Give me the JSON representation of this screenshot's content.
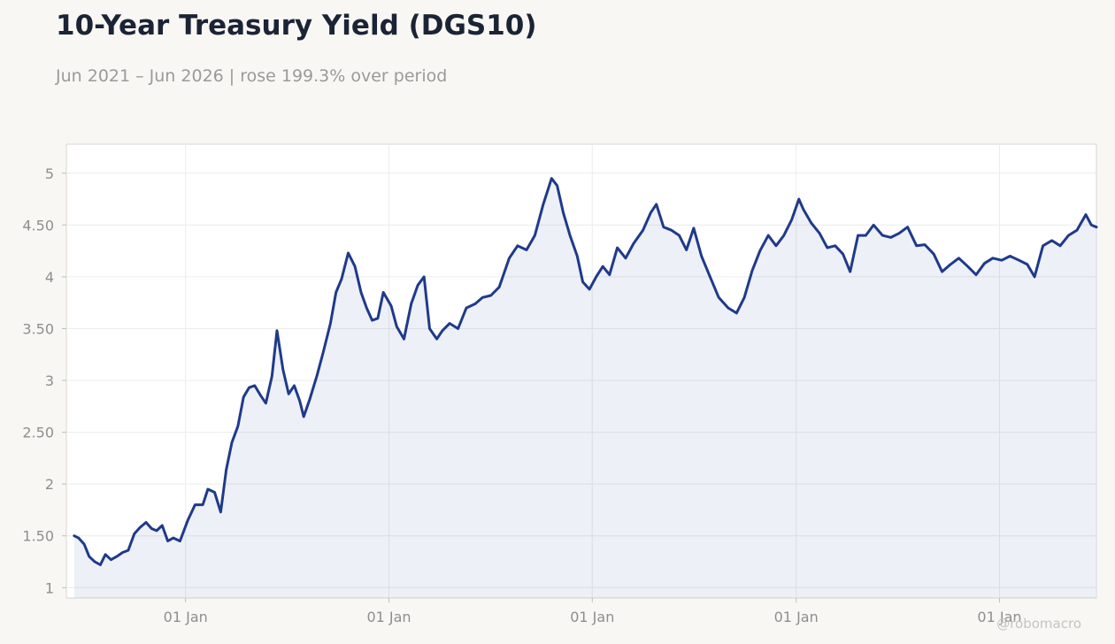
{
  "header": {
    "title": "10-Year Treasury Yield (DGS10)",
    "subtitle": "Jun 2021 – Jun 2026 | rose 199.3% over period"
  },
  "watermark": "@robomacro",
  "colors": {
    "page_background": "#f8f7f4",
    "plot_background": "#ffffff",
    "line": "#1f3a8a",
    "area_fill": "#1f3a8a",
    "grid": "#ececec",
    "axis_text": "#8e8e8e",
    "title": "#1b2435"
  },
  "chart_data": {
    "type": "line",
    "title": "10-Year Treasury Yield (DGS10)",
    "subtitle": "Jun 2021 – Jun 2026 | rose 199.3% over period",
    "xlabel": "",
    "ylabel": "",
    "x_range": [
      "2021-06-01",
      "2026-06-24"
    ],
    "ylim": [
      0.9,
      5.28
    ],
    "y_ticks": [
      1,
      1.5,
      2,
      2.5,
      3,
      3.5,
      4,
      4.5,
      5
    ],
    "y_tick_labels": [
      "1",
      "1.50",
      "2",
      "2.50",
      "3",
      "3.50",
      "4",
      "4.50",
      "5"
    ],
    "x_ticks": [
      "2022-01-01",
      "2023-01-01",
      "2024-01-01",
      "2025-01-01",
      "2026-01-01"
    ],
    "x_tick_labels": [
      "01 Jan",
      "01 Jan",
      "01 Jan",
      "01 Jan",
      "01 Jan"
    ],
    "grid": true,
    "legend": "none",
    "area_fill": true,
    "series": [
      {
        "x": [
          "2021-06-15",
          "2021-06-23",
          "2021-07-03",
          "2021-07-12",
          "2021-07-22",
          "2021-08-01",
          "2021-08-10",
          "2021-08-20",
          "2021-08-30",
          "2021-09-10",
          "2021-09-20",
          "2021-10-01",
          "2021-10-11",
          "2021-10-22",
          "2021-11-01",
          "2021-11-10",
          "2021-11-20",
          "2021-11-30",
          "2021-12-10",
          "2021-12-22",
          "2022-01-05",
          "2022-01-18",
          "2022-02-01",
          "2022-02-10",
          "2022-02-22",
          "2022-03-05",
          "2022-03-15",
          "2022-03-25",
          "2022-04-05",
          "2022-04-15",
          "2022-04-25",
          "2022-05-05",
          "2022-05-15",
          "2022-05-25",
          "2022-06-05",
          "2022-06-14",
          "2022-06-25",
          "2022-07-05",
          "2022-07-15",
          "2022-07-25",
          "2022-08-01",
          "2022-08-12",
          "2022-08-25",
          "2022-09-05",
          "2022-09-18",
          "2022-09-28",
          "2022-10-08",
          "2022-10-20",
          "2022-11-01",
          "2022-11-12",
          "2022-11-22",
          "2022-12-02",
          "2022-12-12",
          "2022-12-22",
          "2023-01-05",
          "2023-01-15",
          "2023-01-28",
          "2023-02-10",
          "2023-02-22",
          "2023-03-05",
          "2023-03-15",
          "2023-03-28",
          "2023-04-07",
          "2023-04-20",
          "2023-05-05",
          "2023-05-20",
          "2023-06-05",
          "2023-06-18",
          "2023-07-03",
          "2023-07-18",
          "2023-08-05",
          "2023-08-20",
          "2023-09-05",
          "2023-09-20",
          "2023-10-05",
          "2023-10-20",
          "2023-10-30",
          "2023-11-10",
          "2023-11-22",
          "2023-12-05",
          "2023-12-15",
          "2023-12-27",
          "2024-01-08",
          "2024-01-20",
          "2024-02-01",
          "2024-02-15",
          "2024-03-01",
          "2024-03-15",
          "2024-04-01",
          "2024-04-15",
          "2024-04-25",
          "2024-05-08",
          "2024-05-22",
          "2024-06-05",
          "2024-06-18",
          "2024-07-01",
          "2024-07-15",
          "2024-08-01",
          "2024-08-15",
          "2024-09-01",
          "2024-09-16",
          "2024-09-30",
          "2024-10-14",
          "2024-10-28",
          "2024-11-12",
          "2024-11-26",
          "2024-12-10",
          "2024-12-24",
          "2025-01-06",
          "2025-01-14",
          "2025-01-28",
          "2025-02-12",
          "2025-02-26",
          "2025-03-12",
          "2025-03-26",
          "2025-04-08",
          "2025-04-22",
          "2025-05-06",
          "2025-05-20",
          "2025-06-05",
          "2025-06-20",
          "2025-07-05",
          "2025-07-20",
          "2025-08-05",
          "2025-08-20",
          "2025-09-05",
          "2025-09-20",
          "2025-10-05",
          "2025-10-20",
          "2025-11-05",
          "2025-11-20",
          "2025-12-05",
          "2025-12-20",
          "2026-01-05",
          "2026-01-20",
          "2026-02-05",
          "2026-02-20",
          "2026-03-05",
          "2026-03-20",
          "2026-04-05",
          "2026-04-20",
          "2026-05-05",
          "2026-05-20",
          "2026-06-05",
          "2026-06-15",
          "2026-06-24"
        ],
        "values": [
          1.5,
          1.48,
          1.42,
          1.3,
          1.25,
          1.22,
          1.32,
          1.27,
          1.3,
          1.34,
          1.36,
          1.52,
          1.58,
          1.63,
          1.57,
          1.55,
          1.6,
          1.45,
          1.48,
          1.45,
          1.65,
          1.8,
          1.8,
          1.95,
          1.92,
          1.73,
          2.14,
          2.4,
          2.56,
          2.84,
          2.93,
          2.95,
          2.86,
          2.78,
          3.04,
          3.48,
          3.1,
          2.87,
          2.95,
          2.8,
          2.65,
          2.82,
          3.05,
          3.27,
          3.55,
          3.85,
          3.98,
          4.23,
          4.1,
          3.85,
          3.7,
          3.58,
          3.6,
          3.85,
          3.72,
          3.52,
          3.4,
          3.74,
          3.92,
          4.0,
          3.5,
          3.4,
          3.48,
          3.55,
          3.5,
          3.7,
          3.74,
          3.8,
          3.82,
          3.9,
          4.18,
          4.3,
          4.26,
          4.4,
          4.7,
          4.95,
          4.88,
          4.62,
          4.4,
          4.2,
          3.95,
          3.88,
          4.0,
          4.1,
          4.02,
          4.28,
          4.18,
          4.32,
          4.45,
          4.62,
          4.7,
          4.48,
          4.45,
          4.4,
          4.26,
          4.47,
          4.2,
          3.98,
          3.8,
          3.7,
          3.65,
          3.8,
          4.06,
          4.25,
          4.4,
          4.3,
          4.4,
          4.55,
          4.75,
          4.65,
          4.52,
          4.42,
          4.28,
          4.3,
          4.22,
          4.05,
          4.4,
          4.4,
          4.5,
          4.4,
          4.38,
          4.42,
          4.48,
          4.3,
          4.31,
          4.22,
          4.05,
          4.12,
          4.18,
          4.1,
          4.02,
          4.13,
          4.18,
          4.16,
          4.2,
          4.16,
          4.12,
          4.0,
          4.3,
          4.35,
          4.3,
          4.4,
          4.45,
          4.6,
          4.5,
          4.48
        ]
      }
    ]
  }
}
